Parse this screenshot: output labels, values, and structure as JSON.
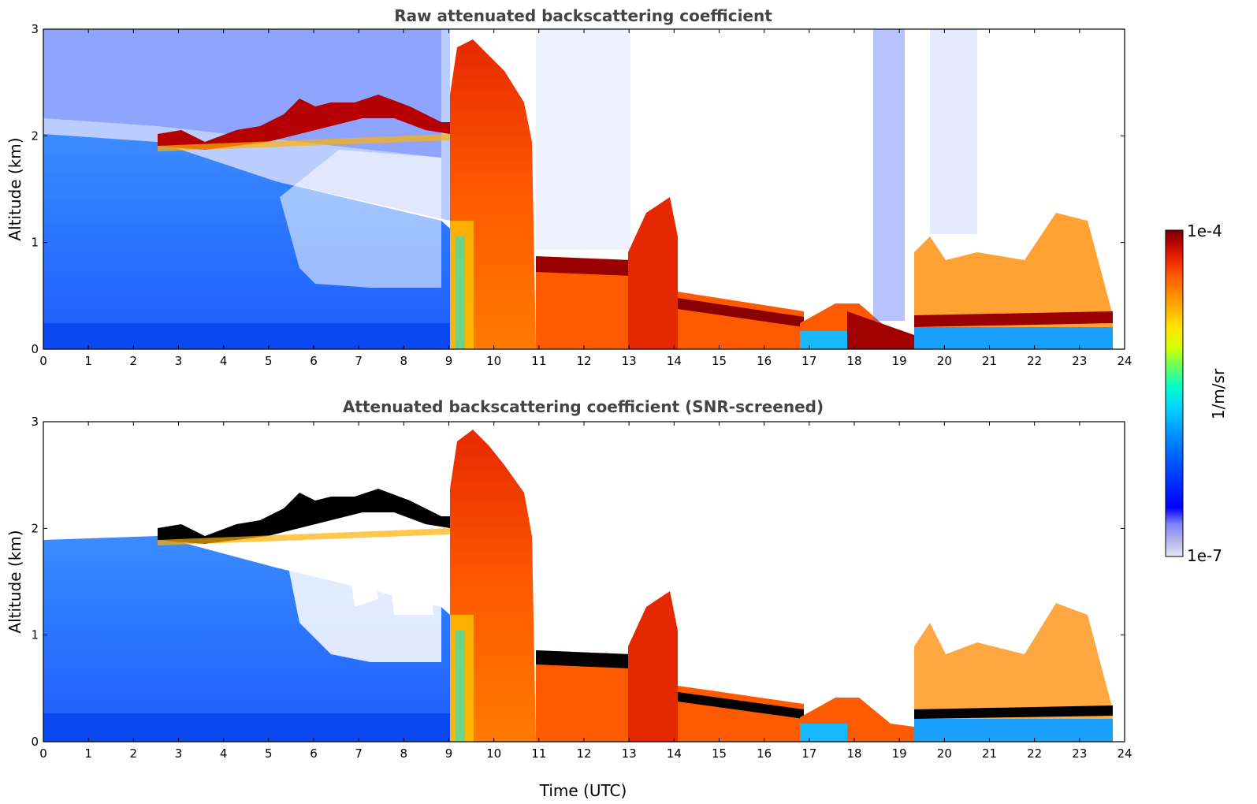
{
  "chart_data": [
    {
      "type": "heatmap",
      "title": "Raw attenuated backscattering coefficient",
      "xlabel": "",
      "ylabel": "Altitude (km)",
      "xlim": [
        0,
        24
      ],
      "ylim": [
        0,
        3
      ],
      "xticks": [
        "0",
        "1",
        "2",
        "3",
        "4",
        "5",
        "6",
        "7",
        "8",
        "9",
        "10",
        "11",
        "12",
        "13",
        "14",
        "15",
        "16",
        "17",
        "18",
        "19",
        "20",
        "21",
        "22",
        "23",
        "24"
      ],
      "yticks": [
        "0",
        "1",
        "2",
        "3"
      ],
      "grid": false,
      "layers": [
        {
          "t": [
            0.0,
            2.6,
            9.05,
            11.0,
            13.0,
            14.2,
            17.0,
            19.2,
            23.8
          ],
          "top_km": [
            1.85,
            1.95,
            1.3,
            0.85,
            0.75,
            0.35,
            0.25,
            0.3,
            0.3
          ]
        },
        {
          "t": [
            2.6,
            4.0,
            5.5,
            6.0,
            8.0,
            9.0
          ],
          "cloud_km": [
            2.0,
            2.0,
            2.1,
            2.2,
            2.2,
            2.05
          ]
        },
        {
          "t": [
            9.05,
            10.8,
            11.0,
            13.0,
            14.0,
            17.0,
            18.0,
            19.0,
            21.0,
            23.8
          ],
          "cloud_km": [
            1.3,
            1.2,
            0.8,
            0.75,
            0.95,
            0.25,
            0.35,
            0.15,
            0.6,
            0.3
          ]
        }
      ]
    },
    {
      "type": "heatmap",
      "title": "Attenuated backscattering coefficient (SNR-screened)",
      "xlabel": "Time (UTC)",
      "ylabel": "Altitude (km)",
      "xlim": [
        0,
        24
      ],
      "ylim": [
        0,
        3
      ],
      "xticks": [
        "0",
        "1",
        "2",
        "3",
        "4",
        "5",
        "6",
        "7",
        "8",
        "9",
        "10",
        "11",
        "12",
        "13",
        "14",
        "15",
        "16",
        "17",
        "18",
        "19",
        "20",
        "21",
        "22",
        "23",
        "24"
      ],
      "yticks": [
        "0",
        "1",
        "2",
        "3"
      ],
      "grid": false
    }
  ],
  "colorbar": {
    "label": "1/m/sr",
    "max_label": "1e-4",
    "min_label": "1e-7",
    "colors": [
      "#e6e6f5",
      "#b4b4eb",
      "#8080ff",
      "#0000ff",
      "#0050ff",
      "#0096ff",
      "#00d7ff",
      "#00ffc8",
      "#64ff64",
      "#d2ff00",
      "#ffe600",
      "#ffa000",
      "#ff5a00",
      "#e61e00",
      "#aa0000",
      "#780000"
    ]
  }
}
